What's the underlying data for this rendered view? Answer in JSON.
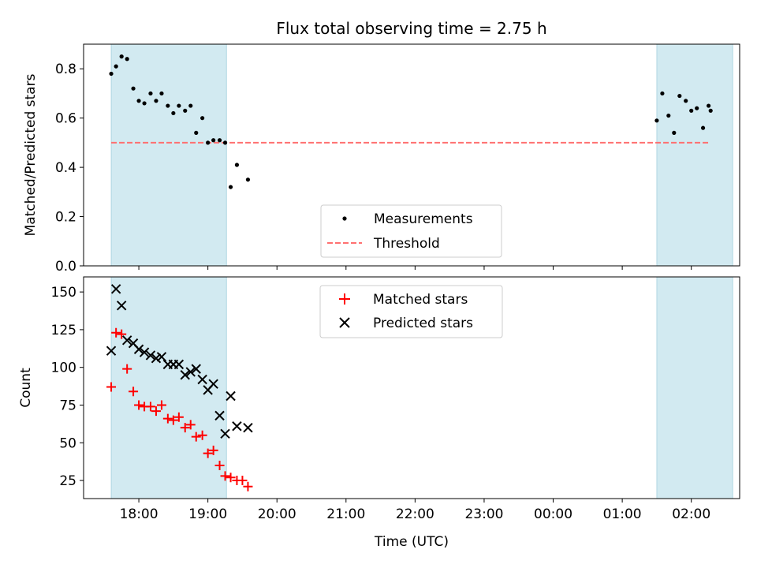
{
  "figure": {
    "title": "Flux total observing time = 2.75 h",
    "xlabel": "Time (UTC)",
    "x_ticks": [
      {
        "t": 18,
        "label": "18:00"
      },
      {
        "t": 19,
        "label": "19:00"
      },
      {
        "t": 20,
        "label": "20:00"
      },
      {
        "t": 21,
        "label": "21:00"
      },
      {
        "t": 22,
        "label": "22:00"
      },
      {
        "t": 23,
        "label": "23:00"
      },
      {
        "t": 24,
        "label": "00:00"
      },
      {
        "t": 25,
        "label": "01:00"
      },
      {
        "t": 26,
        "label": "02:00"
      }
    ]
  },
  "chart_data": [
    {
      "type": "scatter",
      "ylabel": "Matched/Predicted stars",
      "xlim": [
        17.2,
        26.7
      ],
      "ylim": [
        0,
        0.9
      ],
      "y_ticks": [
        {
          "v": 0,
          "label": "0.0"
        },
        {
          "v": 0.2,
          "label": "0.2"
        },
        {
          "v": 0.4,
          "label": "0.4"
        },
        {
          "v": 0.6,
          "label": "0.6"
        },
        {
          "v": 0.8,
          "label": "0.8"
        }
      ],
      "shaded_intervals": [
        [
          17.6,
          19.27
        ],
        [
          25.5,
          26.6
        ]
      ],
      "shade_color": "#add8e6",
      "threshold": {
        "name": "Threshold",
        "value": 0.5,
        "x_range": [
          17.6,
          26.27
        ],
        "color": "#ff7070"
      },
      "series": [
        {
          "name": "Measurements",
          "marker": "dot",
          "color": "#000000",
          "x": [
            17.6,
            17.67,
            17.75,
            17.83,
            17.92,
            18.0,
            18.08,
            18.17,
            18.25,
            18.33,
            18.42,
            18.5,
            18.58,
            18.67,
            18.75,
            18.83,
            18.92,
            19.0,
            19.08,
            19.17,
            19.25,
            19.33,
            19.42,
            19.58,
            25.5,
            25.58,
            25.67,
            25.75,
            25.83,
            25.92,
            26.0,
            26.08,
            26.17,
            26.25,
            26.28
          ],
          "y": [
            0.78,
            0.81,
            0.85,
            0.84,
            0.72,
            0.67,
            0.66,
            0.7,
            0.67,
            0.7,
            0.65,
            0.62,
            0.65,
            0.63,
            0.65,
            0.54,
            0.6,
            0.5,
            0.51,
            0.51,
            0.5,
            0.32,
            0.41,
            0.35,
            0.59,
            0.7,
            0.61,
            0.54,
            0.69,
            0.67,
            0.63,
            0.64,
            0.56,
            0.65,
            0.63
          ]
        }
      ],
      "legend": "lower-center"
    },
    {
      "type": "scatter",
      "ylabel": "Count",
      "xlim": [
        17.2,
        26.7
      ],
      "ylim": [
        13,
        160
      ],
      "y_ticks": [
        {
          "v": 25,
          "label": "25"
        },
        {
          "v": 50,
          "label": "50"
        },
        {
          "v": 75,
          "label": "75"
        },
        {
          "v": 100,
          "label": "100"
        },
        {
          "v": 125,
          "label": "125"
        },
        {
          "v": 150,
          "label": "150"
        }
      ],
      "shaded_intervals": [
        [
          17.6,
          19.27
        ],
        [
          25.5,
          26.6
        ]
      ],
      "shade_color": "#add8e6",
      "series": [
        {
          "name": "Matched stars",
          "marker": "plus",
          "color": "#ff0000",
          "x": [
            17.6,
            17.67,
            17.75,
            17.83,
            17.92,
            18.0,
            18.08,
            18.17,
            18.25,
            18.33,
            18.42,
            18.5,
            18.58,
            18.67,
            18.75,
            18.83,
            18.92,
            19.0,
            19.08,
            19.17,
            19.25,
            19.33,
            19.42,
            19.5,
            19.58
          ],
          "y": [
            87,
            123,
            122,
            99,
            84,
            75,
            74,
            74,
            71,
            75,
            66,
            65,
            67,
            60,
            62,
            54,
            55,
            43,
            45,
            35,
            28,
            27,
            25,
            25,
            21
          ]
        },
        {
          "name": "Predicted stars",
          "marker": "x",
          "color": "#000000",
          "x": [
            17.6,
            17.67,
            17.75,
            17.83,
            17.92,
            18.0,
            18.08,
            18.17,
            18.25,
            18.33,
            18.42,
            18.5,
            18.58,
            18.67,
            18.75,
            18.83,
            18.92,
            19.0,
            19.08,
            19.17,
            19.25,
            19.33,
            19.42,
            19.58
          ],
          "y": [
            111,
            152,
            141,
            118,
            116,
            112,
            110,
            108,
            106,
            107,
            102,
            102,
            102,
            95,
            97,
            99,
            92,
            85,
            89,
            68,
            56,
            81,
            61,
            60
          ]
        }
      ],
      "legend": "upper-center"
    }
  ]
}
